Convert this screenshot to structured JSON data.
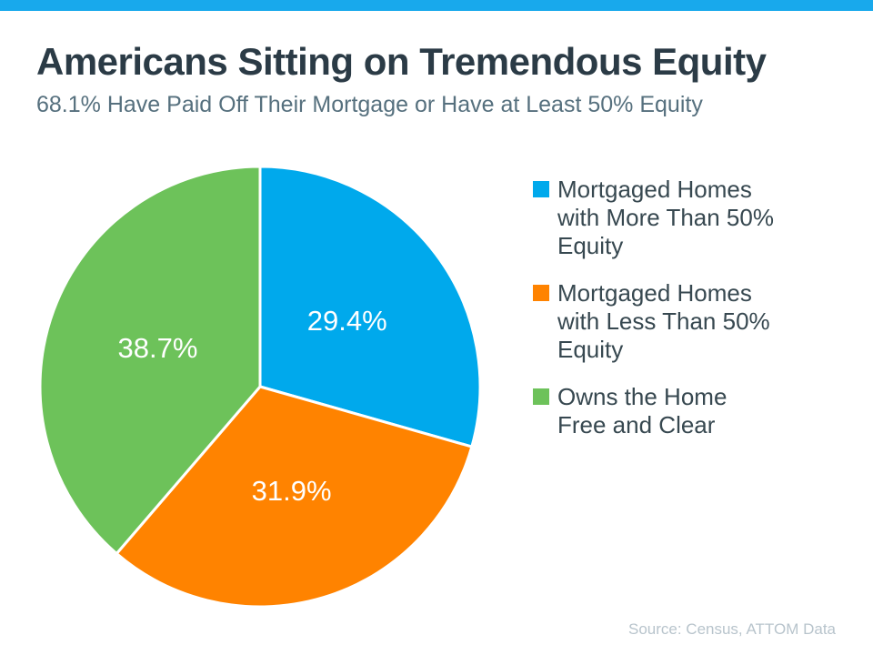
{
  "page": {
    "accent_bar_color": "#18a9ec",
    "background_color": "#ffffff"
  },
  "header": {
    "title": "Americans Sitting on Tremendous Equity",
    "subtitle": "68.1% Have Paid Off Their Mortgage or Have at Least 50% Equity"
  },
  "chart_data": {
    "type": "pie",
    "title": "Americans Sitting on Tremendous Equity",
    "subtitle": "68.1% Have Paid Off Their Mortgage or Have at Least 50% Equity",
    "start_angle": "12 o'clock, clockwise",
    "legend_position": "right",
    "slices": [
      {
        "name": "Mortgaged Homes with More Than 50% Equity",
        "value": 29.4,
        "label": "29.4%",
        "color": "#00a9ec"
      },
      {
        "name": "Mortgaged Homes with Less Than 50% Equity",
        "value": 31.9,
        "label": "31.9%",
        "color": "#ff8300"
      },
      {
        "name": "Owns the Home Free and Clear",
        "value": 38.7,
        "label": "38.7%",
        "color": "#6dc25a"
      }
    ]
  },
  "legend": {
    "items": [
      {
        "color": "#00a9ec",
        "lines": [
          "Mortgaged Homes",
          "with More Than 50%",
          "Equity"
        ]
      },
      {
        "color": "#ff8300",
        "lines": [
          "Mortgaged Homes",
          "with Less Than 50%",
          "Equity"
        ]
      },
      {
        "color": "#6dc25a",
        "lines": [
          "Owns the Home",
          "Free and Clear"
        ]
      }
    ]
  },
  "footer": {
    "source": "Source: Census, ATTOM Data"
  }
}
